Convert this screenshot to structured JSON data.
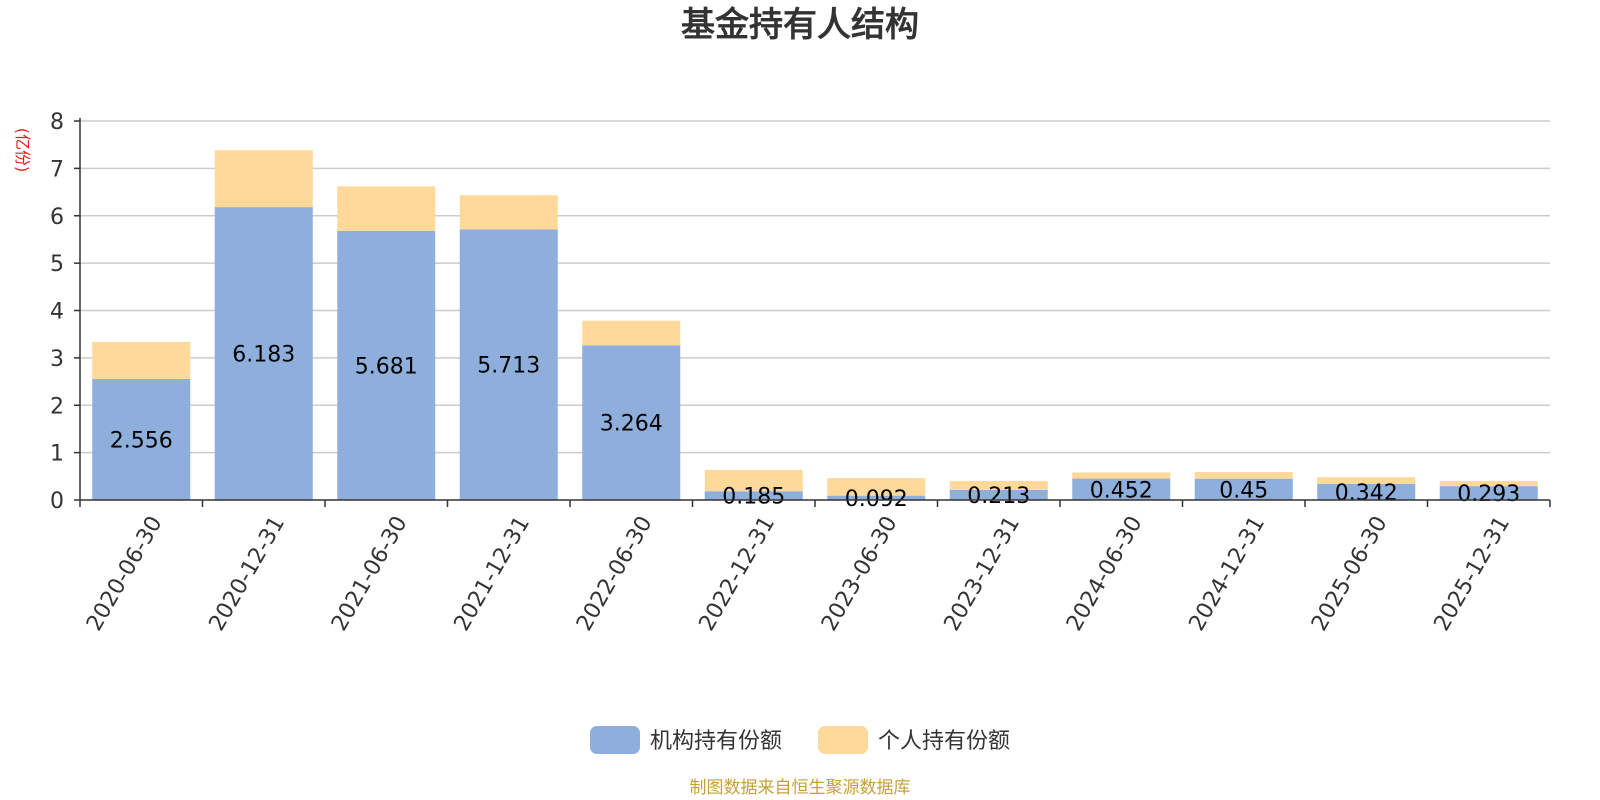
{
  "chart_data": {
    "type": "bar",
    "stacked": true,
    "title": "基金持有人结构",
    "ylabel": "(亿份)",
    "ylim": [
      0,
      8
    ],
    "yticks": [
      "0",
      "1",
      "2",
      "3",
      "4",
      "5",
      "6",
      "7",
      "8"
    ],
    "categories": [
      "2020-06-30",
      "2020-12-31",
      "2021-06-30",
      "2021-12-31",
      "2022-06-30",
      "2022-12-31",
      "2023-06-30",
      "2023-12-31",
      "2024-06-30",
      "2024-12-31",
      "2025-06-30",
      "2025-12-31"
    ],
    "series": [
      {
        "name": "机构持有份额",
        "color": "#8eaedb",
        "values": [
          2.556,
          6.183,
          5.681,
          5.713,
          3.264,
          0.185,
          0.092,
          0.213,
          0.452,
          0.45,
          0.342,
          0.293
        ],
        "labels": [
          "2.556",
          "6.183",
          "5.681",
          "5.713",
          "3.264",
          "0.185",
          "0.092",
          "0.213",
          "0.452",
          "0.45",
          "0.342",
          "0.293"
        ]
      },
      {
        "name": "个人持有份额",
        "color": "#ffd99a",
        "values": [
          0.78,
          1.2,
          0.94,
          0.72,
          0.52,
          0.45,
          0.37,
          0.19,
          0.13,
          0.14,
          0.14,
          0.11
        ]
      }
    ],
    "grid": true,
    "legend_position": "bottom-center"
  },
  "footer": {
    "source": "制图数据来自恒生聚源数据库"
  }
}
